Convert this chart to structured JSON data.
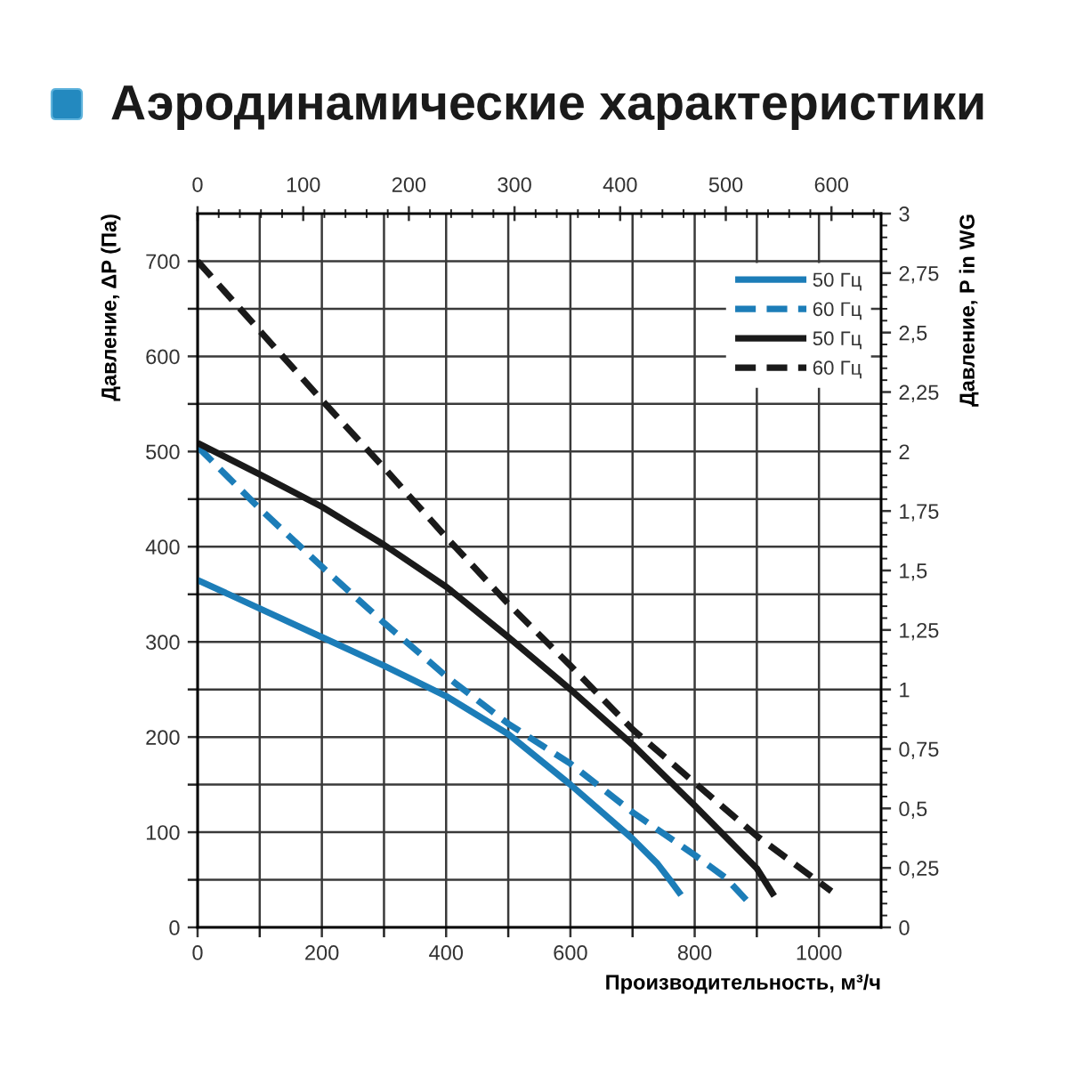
{
  "chart_data": {
    "type": "line",
    "title": "Аэродинамические характеристики",
    "xlabel": "Производительность, м³/ч",
    "ylabel": "Давление, ΔP (Па)",
    "y2label": "Давление, P in WG",
    "xlim": [
      0,
      1100
    ],
    "xticks": [
      0,
      {
        "value": 100,
        "label": null
      },
      200,
      {
        "value": 300,
        "label": null
      },
      400,
      {
        "value": 500,
        "label": null
      },
      600,
      {
        "value": 700,
        "label": null
      },
      800,
      {
        "value": 900,
        "label": null
      },
      1000
    ],
    "ylim": [
      0,
      750
    ],
    "yticks": [
      0,
      {
        "value": 50,
        "label": null
      },
      100,
      {
        "value": 150,
        "label": null
      },
      200,
      {
        "value": 250,
        "label": null
      },
      300,
      {
        "value": 350,
        "label": null
      },
      400,
      {
        "value": 450,
        "label": null
      },
      500,
      {
        "value": 550,
        "label": null
      },
      600,
      {
        "value": 650,
        "label": null
      },
      700
    ],
    "x2lim": [
      0,
      647
    ],
    "x2ticks": [
      0,
      {
        "value": 20,
        "label": null
      },
      {
        "value": 40,
        "label": null
      },
      {
        "value": 60,
        "label": null
      },
      {
        "value": 80,
        "label": null
      },
      100,
      {
        "value": 120,
        "label": null
      },
      {
        "value": 140,
        "label": null
      },
      {
        "value": 160,
        "label": null
      },
      {
        "value": 180,
        "label": null
      },
      200,
      {
        "value": 220,
        "label": null
      },
      {
        "value": 240,
        "label": null
      },
      {
        "value": 260,
        "label": null
      },
      {
        "value": 280,
        "label": null
      },
      300,
      {
        "value": 320,
        "label": null
      },
      {
        "value": 340,
        "label": null
      },
      {
        "value": 360,
        "label": null
      },
      {
        "value": 380,
        "label": null
      },
      400,
      {
        "value": 420,
        "label": null
      },
      {
        "value": 440,
        "label": null
      },
      {
        "value": 460,
        "label": null
      },
      {
        "value": 480,
        "label": null
      },
      500,
      {
        "value": 520,
        "label": null
      },
      {
        "value": 540,
        "label": null
      },
      {
        "value": 560,
        "label": null
      },
      {
        "value": 580,
        "label": null
      },
      600,
      {
        "value": 620,
        "label": null
      },
      {
        "value": 640,
        "label": null
      }
    ],
    "y2lim": [
      0,
      3
    ],
    "y2ticks": [
      0,
      {
        "value": 0.05,
        "label": null
      },
      {
        "value": 0.1,
        "label": null
      },
      {
        "value": 0.15,
        "label": null
      },
      {
        "value": 0.2,
        "label": null
      },
      {
        "value": 0.25,
        "label": "0,25"
      },
      {
        "value": 0.3,
        "label": null
      },
      {
        "value": 0.35,
        "label": null
      },
      {
        "value": 0.4,
        "label": null
      },
      {
        "value": 0.45,
        "label": null
      },
      {
        "value": 0.5,
        "label": "0,5"
      },
      {
        "value": 0.55,
        "label": null
      },
      {
        "value": 0.6,
        "label": null
      },
      {
        "value": 0.65,
        "label": null
      },
      {
        "value": 0.7,
        "label": null
      },
      {
        "value": 0.75,
        "label": "0,75"
      },
      {
        "value": 0.8,
        "label": null
      },
      {
        "value": 0.85,
        "label": null
      },
      {
        "value": 0.9,
        "label": null
      },
      {
        "value": 0.95,
        "label": null
      },
      1,
      {
        "value": 1.05,
        "label": null
      },
      {
        "value": 1.1,
        "label": null
      },
      {
        "value": 1.15,
        "label": null
      },
      {
        "value": 1.2,
        "label": null
      },
      {
        "value": 1.25,
        "label": "1,25"
      },
      {
        "value": 1.3,
        "label": null
      },
      {
        "value": 1.35,
        "label": null
      },
      {
        "value": 1.4,
        "label": null
      },
      {
        "value": 1.45,
        "label": null
      },
      {
        "value": 1.5,
        "label": "1,5"
      },
      {
        "value": 1.55,
        "label": null
      },
      {
        "value": 1.6,
        "label": null
      },
      {
        "value": 1.65,
        "label": null
      },
      {
        "value": 1.7,
        "label": null
      },
      {
        "value": 1.75,
        "label": "1,75"
      },
      {
        "value": 1.8,
        "label": null
      },
      {
        "value": 1.85,
        "label": null
      },
      {
        "value": 1.9,
        "label": null
      },
      {
        "value": 1.95,
        "label": null
      },
      2,
      {
        "value": 2.05,
        "label": null
      },
      {
        "value": 2.1,
        "label": null
      },
      {
        "value": 2.15,
        "label": null
      },
      {
        "value": 2.2,
        "label": null
      },
      {
        "value": 2.25,
        "label": "2,25"
      },
      {
        "value": 2.3,
        "label": null
      },
      {
        "value": 2.35,
        "label": null
      },
      {
        "value": 2.4,
        "label": null
      },
      {
        "value": 2.45,
        "label": null
      },
      {
        "value": 2.5,
        "label": "2,5"
      },
      {
        "value": 2.55,
        "label": null
      },
      {
        "value": 2.6,
        "label": null
      },
      {
        "value": 2.65,
        "label": null
      },
      {
        "value": 2.7,
        "label": null
      },
      {
        "value": 2.75,
        "label": "2,75"
      },
      {
        "value": 2.8,
        "label": null
      },
      {
        "value": 2.85,
        "label": null
      },
      {
        "value": 2.9,
        "label": null
      },
      {
        "value": 2.95,
        "label": null
      },
      3
    ],
    "grid": true,
    "legend": "top right",
    "series": [
      {
        "name": "50 Гц",
        "color": "#1c7db8",
        "line_style": "solid",
        "x": [
          0,
          100,
          200,
          300,
          400,
          500,
          600,
          700,
          740,
          760,
          778
        ],
        "values": [
          365,
          335,
          305,
          275,
          243,
          203,
          150,
          93,
          67,
          50,
          34
        ]
      },
      {
        "name": "60 Гц",
        "color": "#1c7db8",
        "line_style": "dashed",
        "x": [
          0,
          100,
          200,
          300,
          400,
          500,
          600,
          700,
          800,
          850,
          890
        ],
        "values": [
          505,
          440,
          379,
          320,
          264,
          214,
          172,
          121,
          76,
          52,
          24
        ]
      },
      {
        "name": "50 Гц",
        "color": "#1a1a1a",
        "line_style": "solid",
        "x": [
          0,
          100,
          200,
          300,
          400,
          500,
          600,
          700,
          800,
          900,
          928
        ],
        "values": [
          509,
          476,
          442,
          402,
          358,
          305,
          250,
          192,
          128,
          62,
          33
        ]
      },
      {
        "name": "60 Гц",
        "color": "#1a1a1a",
        "line_style": "dashed",
        "x": [
          0,
          100,
          200,
          300,
          400,
          500,
          600,
          700,
          800,
          900,
          1020
        ],
        "values": [
          700,
          627,
          554,
          483,
          410,
          340,
          275,
          208,
          152,
          96,
          38
        ]
      }
    ]
  }
}
